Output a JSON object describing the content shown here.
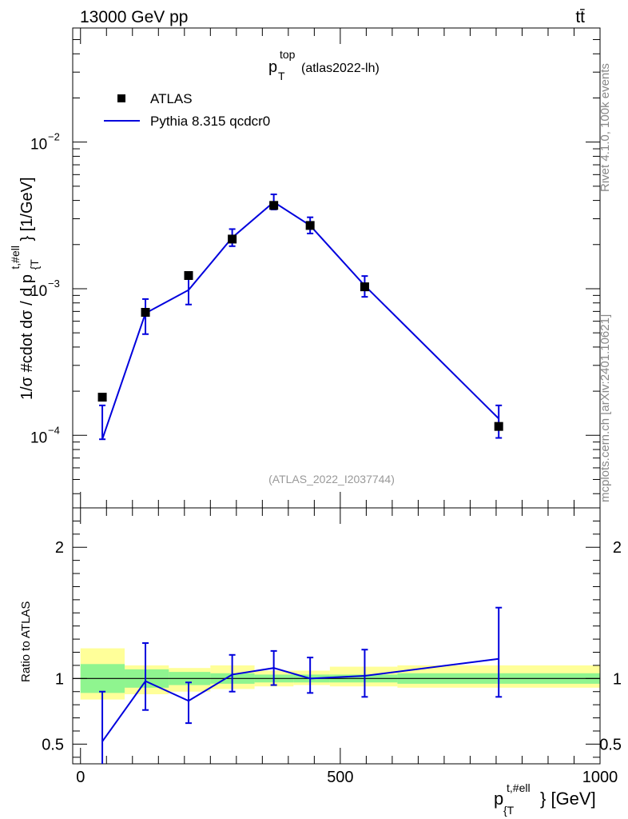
{
  "header": {
    "energy_label": "13000 GeV pp",
    "process_label": "tt̄",
    "side_label_top": "Rivet 4.1.0,  100k events",
    "side_label_bottom": "mcplots.cern.ch [arXiv:2401.10621]"
  },
  "chart_data": {
    "type": "line",
    "title_main": "p",
    "title_sup": "top",
    "title_sub": "T",
    "title_tag": "(atlas2022-lh)",
    "watermark": "(ATLAS_2022_I2037744)",
    "xlabel_main": "p",
    "xlabel_sup": "t,#ell",
    "xlabel_sub": "{T",
    "xlabel_tail": "} [GeV]",
    "ylabel": "1/σ #cdot dσ / d p{T}t,#ell} [1/GeV]",
    "ylabel_main": "1/σ #cdot dσ / d p",
    "ylabel_sup": "t,#ell",
    "ylabel_sub": "{T",
    "ylabel_tail": "} [1/GeV]",
    "ratio_ylabel": "Ratio to ATLAS",
    "xlim": [
      -15,
      1000
    ],
    "ylim": [
      3.2e-05,
      0.06
    ],
    "ratio_ylim": [
      0.35,
      2.3
    ],
    "x_ticks": [
      0,
      500,
      1000
    ],
    "x_tick_labels": [
      "0",
      "500",
      "1000"
    ],
    "y_ticks": [
      0.0001,
      0.001,
      0.01
    ],
    "y_tick_labels": [
      {
        "base": "10",
        "exp": "−4"
      },
      {
        "base": "10",
        "exp": "−3"
      },
      {
        "base": "10",
        "exp": "−2"
      }
    ],
    "ratio_ticks": [
      0.5,
      1,
      2
    ],
    "ratio_tick_labels": [
      "0.5",
      "1",
      "2"
    ],
    "legend": {
      "position": "top-left",
      "entries": [
        {
          "label": "ATLAS",
          "style": "marker"
        },
        {
          "label": "Pythia 8.315 qcdcr0",
          "style": "line"
        }
      ]
    },
    "bins": [
      {
        "lo": 0,
        "hi": 85
      },
      {
        "lo": 85,
        "hi": 170
      },
      {
        "lo": 170,
        "hi": 250
      },
      {
        "lo": 250,
        "hi": 335
      },
      {
        "lo": 335,
        "hi": 410
      },
      {
        "lo": 410,
        "hi": 480
      },
      {
        "lo": 480,
        "hi": 610
      },
      {
        "lo": 610,
        "hi": 1000
      }
    ],
    "data": {
      "name": "ATLAS",
      "x": [
        42,
        125,
        208,
        292,
        372,
        442,
        547,
        805
      ],
      "y": [
        0.000182,
        0.00069,
        0.00123,
        0.00218,
        0.0037,
        0.0027,
        0.00103,
        0.000115
      ],
      "color": "#000000"
    },
    "mc": {
      "name": "Pythia 8.315 qcdcr0",
      "x": [
        42,
        125,
        208,
        292,
        372,
        442,
        547,
        805
      ],
      "y": [
        9.4e-05,
        0.00068,
        0.00098,
        0.00223,
        0.0039,
        0.0027,
        0.00105,
        0.00013
      ],
      "err_lo": [
        9.4e-05,
        0.00049,
        0.00078,
        0.00195,
        0.00347,
        0.00238,
        0.00088,
        9.6e-05
      ],
      "err_hi": [
        0.00016,
        0.00085,
        0.00118,
        0.00255,
        0.0044,
        0.00307,
        0.00122,
        0.00016
      ],
      "ratio": [
        0.52,
        0.98,
        0.83,
        1.03,
        1.08,
        1.0,
        1.02,
        1.15
      ],
      "ratio_err_lo": [
        0.32,
        0.76,
        0.66,
        0.9,
        0.95,
        0.89,
        0.86,
        0.86
      ],
      "ratio_err_hi": [
        0.9,
        1.27,
        0.97,
        1.18,
        1.21,
        1.16,
        1.22,
        1.54
      ],
      "color": "#0000dd"
    },
    "band_inner": {
      "color": "#8ff58f",
      "lo": [
        0.89,
        0.93,
        0.95,
        0.96,
        0.97,
        0.97,
        0.97,
        0.96
      ],
      "hi": [
        1.11,
        1.07,
        1.05,
        1.04,
        1.03,
        1.03,
        1.03,
        1.04
      ]
    },
    "band_outer": {
      "color": "#ffff99",
      "lo": [
        0.84,
        0.88,
        0.9,
        0.92,
        0.94,
        0.95,
        0.94,
        0.93
      ],
      "hi": [
        1.23,
        1.1,
        1.08,
        1.1,
        1.06,
        1.06,
        1.09,
        1.1
      ]
    }
  }
}
